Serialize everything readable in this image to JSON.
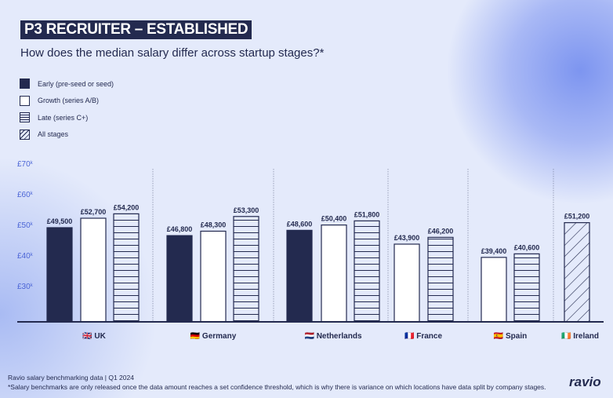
{
  "header": {
    "title": "P3 RECRUITER – ESTABLISHED",
    "subtitle": "How does the median salary differ across startup stages?*"
  },
  "colors": {
    "navy": "#232a4f",
    "axis_label": "#4a64d6"
  },
  "chart_data": {
    "type": "bar",
    "title": "How does the median salary differ across startup stages?*",
    "legend": [
      {
        "name": "Early (pre-seed or seed)",
        "pattern": "solid"
      },
      {
        "name": "Growth (series A/B)",
        "pattern": "empty"
      },
      {
        "name": "Late (series C+)",
        "pattern": "horizontal-lines"
      },
      {
        "name": "All stages",
        "pattern": "diagonal-hatch"
      }
    ],
    "legend_position": "top-left",
    "yticks": [
      "£30k",
      "£40k",
      "£50k",
      "£60k",
      "£70k"
    ],
    "ytick_values": [
      30000,
      40000,
      50000,
      60000,
      70000
    ],
    "ylim": [
      17500,
      70000
    ],
    "groups": [
      {
        "label": "UK",
        "flag": "🇬🇧",
        "bars": [
          {
            "series": "Early (pre-seed or seed)",
            "value": 49500,
            "label": "£49,500"
          },
          {
            "series": "Growth (series A/B)",
            "value": 52700,
            "label": "£52,700"
          },
          {
            "series": "Late (series C+)",
            "value": 54200,
            "label": "£54,200"
          }
        ]
      },
      {
        "label": "Germany",
        "flag": "🇩🇪",
        "bars": [
          {
            "series": "Early (pre-seed or seed)",
            "value": 46800,
            "label": "£46,800"
          },
          {
            "series": "Growth (series A/B)",
            "value": 48300,
            "label": "£48,300"
          },
          {
            "series": "Late (series C+)",
            "value": 53300,
            "label": "£53,300"
          }
        ]
      },
      {
        "label": "Netherlands",
        "flag": "🇳🇱",
        "bars": [
          {
            "series": "Early (pre-seed or seed)",
            "value": 48600,
            "label": "£48,600"
          },
          {
            "series": "Growth (series A/B)",
            "value": 50400,
            "label": "£50,400"
          },
          {
            "series": "Late (series C+)",
            "value": 51800,
            "label": "£51,800"
          }
        ]
      },
      {
        "label": "France",
        "flag": "🇫🇷",
        "bars": [
          {
            "series": "Growth (series A/B)",
            "value": 43900,
            "label": "£43,900"
          },
          {
            "series": "Late (series C+)",
            "value": 46200,
            "label": "£46,200"
          }
        ]
      },
      {
        "label": "Spain",
        "flag": "🇪🇸",
        "bars": [
          {
            "series": "Growth (series A/B)",
            "value": 39400,
            "label": "£39,400"
          },
          {
            "series": "Late (series C+)",
            "value": 40600,
            "label": "£40,600"
          }
        ]
      },
      {
        "label": "Ireland",
        "flag": "🇮🇪",
        "bars": [
          {
            "series": "All stages",
            "value": 51200,
            "label": "£51,200"
          }
        ]
      }
    ]
  },
  "footer": {
    "source": "Ravio salary benchmarking data | Q1 2024",
    "note": "*Salary benchmarks are only released once the data amount reaches a set confidence threshold, which is why there is variance on which locations have data split by company stages.",
    "logo": "ravio"
  }
}
